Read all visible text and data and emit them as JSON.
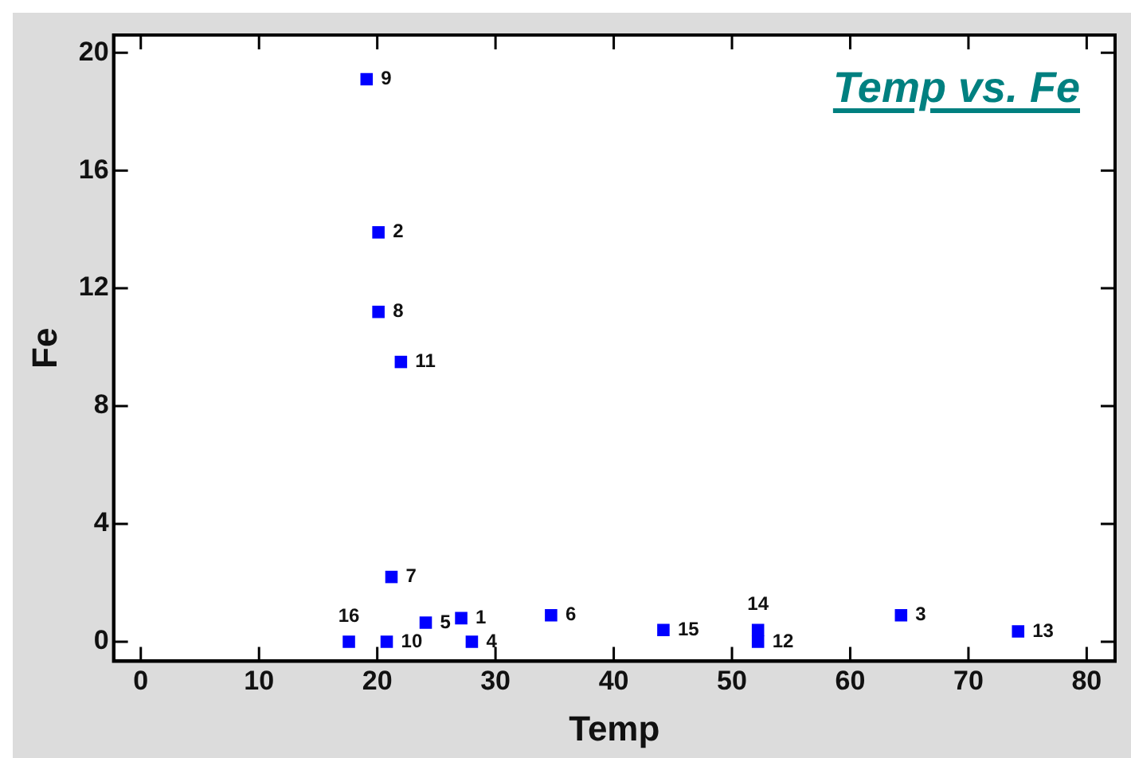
{
  "chart_data": {
    "type": "scatter",
    "title": "Temp vs. Fe",
    "xlabel": "Temp",
    "ylabel": "Fe",
    "xlim": [
      -2.3,
      82.4
    ],
    "ylim": [
      -0.66,
      20.6
    ],
    "xticks": [
      0,
      10,
      20,
      30,
      40,
      50,
      60,
      70,
      80
    ],
    "yticks": [
      0,
      4,
      8,
      12,
      16,
      20
    ],
    "grid": false,
    "legend": false,
    "marker": "square",
    "series": [
      {
        "color": "#0000ff",
        "x": [
          27.1,
          20.1,
          64.3,
          28.0,
          24.1,
          34.7,
          21.2,
          20.1,
          19.1,
          20.8,
          22.0,
          52.2,
          74.2,
          52.2,
          44.2,
          17.6
        ],
        "values": [
          0.8,
          13.9,
          0.9,
          0,
          0.65,
          0.9,
          2.2,
          11.2,
          19.1,
          0,
          9.5,
          0,
          0.35,
          0.4,
          0.4,
          0
        ]
      }
    ],
    "annotations": [
      {
        "text": "1",
        "x": 27.1,
        "y": 0.8
      },
      {
        "text": "2",
        "x": 20.1,
        "y": 13.9
      },
      {
        "text": "3",
        "x": 64.3,
        "y": 0.9
      },
      {
        "text": "4",
        "x": 28.0,
        "y": 0
      },
      {
        "text": "5",
        "x": 24.1,
        "y": 0.65
      },
      {
        "text": "6",
        "x": 34.7,
        "y": 0.9
      },
      {
        "text": "7",
        "x": 21.2,
        "y": 2.2
      },
      {
        "text": "8",
        "x": 20.1,
        "y": 11.2
      },
      {
        "text": "9",
        "x": 19.1,
        "y": 19.1
      },
      {
        "text": "10",
        "x": 20.8,
        "y": 0
      },
      {
        "text": "11",
        "x": 22.0,
        "y": 9.5
      },
      {
        "text": "12",
        "x": 52.2,
        "y": 0
      },
      {
        "text": "13",
        "x": 74.2,
        "y": 0.35
      },
      {
        "text": "14",
        "x": 52.2,
        "y": 0.4
      },
      {
        "text": "15",
        "x": 44.2,
        "y": 0.4
      },
      {
        "text": "16",
        "x": 17.6,
        "y": 0
      }
    ]
  }
}
